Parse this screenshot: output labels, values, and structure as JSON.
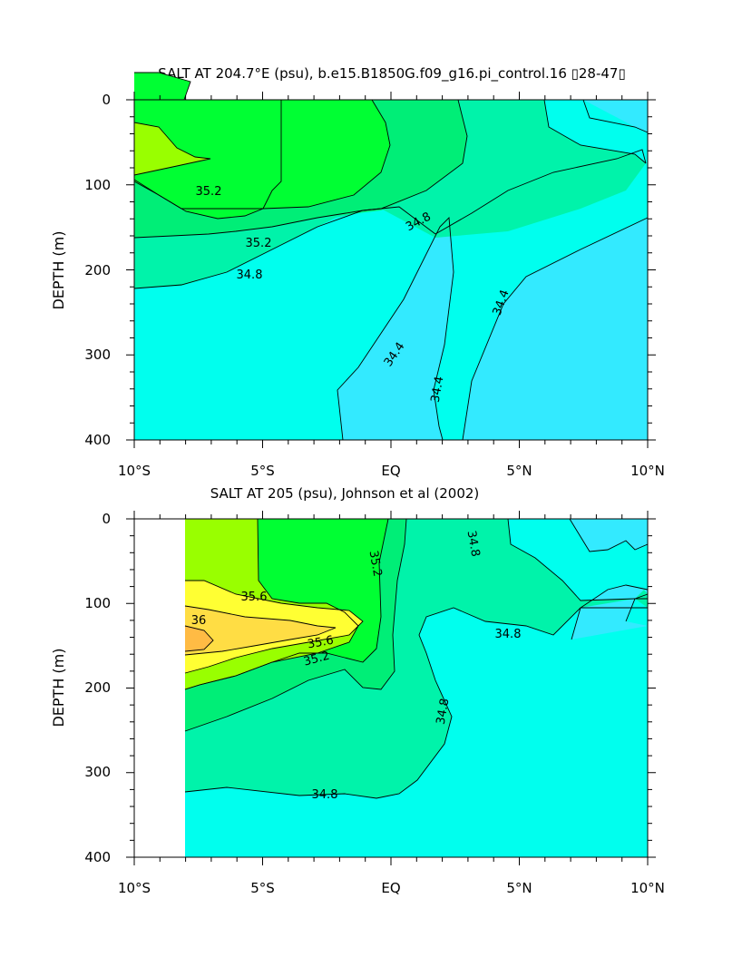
{
  "chart_data": [
    {
      "type": "contour",
      "title": "SALT AT 204.7°E (psu), b.e15.B1850G.f09_g16.pi_control.16 ▯28-47▯",
      "xlabel": "",
      "ylabel": "DEPTH (m)",
      "x_ticks": [
        "10°S",
        "5°S",
        "EQ",
        "5°N",
        "10°N"
      ],
      "y_ticks": [
        "0",
        "100",
        "200",
        "300",
        "400"
      ],
      "xlim": [
        -10,
        10
      ],
      "ylim": [
        400,
        0
      ],
      "contour_interval": 0.2,
      "contour_labels": [
        {
          "text": "35.2",
          "lat": -7.6,
          "depth": 108
        },
        {
          "text": "35.2",
          "lat": -4.7,
          "depth": 168
        },
        {
          "text": "34.8",
          "lat": -5.0,
          "depth": 207
        },
        {
          "text": "34.8",
          "lat": 1.4,
          "depth": 140
        },
        {
          "text": "34.4",
          "lat": 0.5,
          "depth": 303
        },
        {
          "text": "34.4",
          "lat": 2.1,
          "depth": 345
        },
        {
          "text": "34.4",
          "lat": 4.9,
          "depth": 245
        }
      ],
      "data_region": {
        "lat_min": -10,
        "lat_max": 10
      }
    },
    {
      "type": "contour",
      "title": "SALT AT 205 (psu), Johnson et al (2002)",
      "xlabel": "",
      "ylabel": "DEPTH (m)",
      "x_ticks": [
        "10°S",
        "5°S",
        "EQ",
        "5°N",
        "10°N"
      ],
      "y_ticks": [
        "0",
        "100",
        "200",
        "300",
        "400"
      ],
      "xlim": [
        -10,
        10
      ],
      "ylim": [
        400,
        0
      ],
      "contour_interval": 0.2,
      "contour_labels": [
        {
          "text": "35.6",
          "lat": -5.1,
          "depth": 100
        },
        {
          "text": "36",
          "lat": -7.6,
          "depth": 127
        },
        {
          "text": "35.6",
          "lat": -4.1,
          "depth": 143
        },
        {
          "text": "35.2",
          "lat": -3.4,
          "depth": 175
        },
        {
          "text": "35.2",
          "lat": -1.0,
          "depth": 55
        },
        {
          "text": "34.8",
          "lat": 3.0,
          "depth": 35
        },
        {
          "text": "34.8",
          "lat": 4.5,
          "depth": 137
        },
        {
          "text": "34.8",
          "lat": 2.4,
          "depth": 222
        },
        {
          "text": "34.8",
          "lat": -2.6,
          "depth": 325
        }
      ],
      "data_region": {
        "lat_min": -8,
        "lat_max": 10
      }
    }
  ],
  "colors": {
    "s34_4": "#33eaff",
    "s34_6": "#00ffee",
    "s34_8": "#00f3aa",
    "s35_0": "#00ee77",
    "s35_2": "#00ff33",
    "s35_4": "#99ff00",
    "s35_6": "#ffff33",
    "s35_8": "#ffdd44",
    "s36_0": "#ffbb44"
  }
}
